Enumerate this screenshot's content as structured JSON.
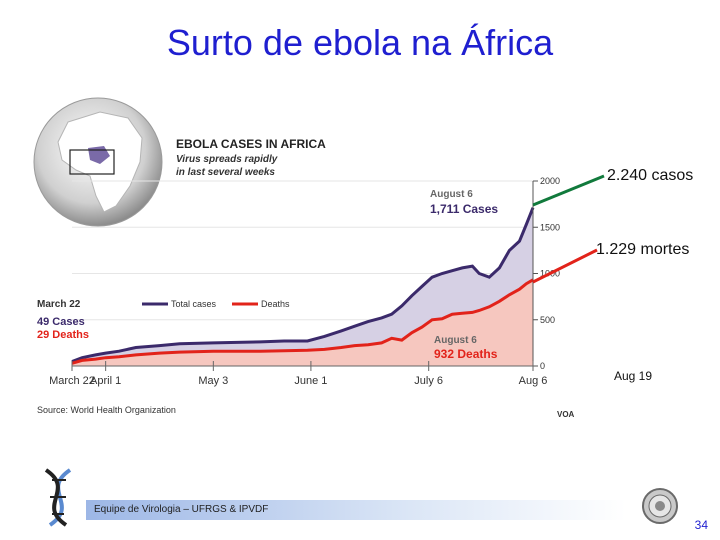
{
  "slide": {
    "title": "Surto de ebola na África",
    "page_number": "34",
    "footer": "Equipe de Virologia – UFRGS & IPVDF"
  },
  "graphic": {
    "heading": "EBOLA CASES IN AFRICA",
    "subheading_line1": "Virus spreads rapidly",
    "subheading_line2": "in last several weeks",
    "source": "Source: World Health Organization",
    "logo": "VOA",
    "start_label_date": "March 22",
    "start_label_cases": "49 Cases",
    "start_label_deaths": "29 Deaths",
    "cases_annotation_date": "August 6",
    "cases_annotation_value": "1,711 Cases",
    "deaths_annotation_date": "August 6",
    "deaths_annotation_value": "932 Deaths"
  },
  "annotations": {
    "cases_callout": "2.240 casos",
    "deaths_callout": "1.229 mortes",
    "date_callout": "Aug 19"
  },
  "colors": {
    "title": "#1f1fd0",
    "cases_line": "#3b2a6b",
    "deaths_line": "#e2231a",
    "cases_fill": "#d6d0e4",
    "deaths_fill": "#f6c7bf",
    "cases_callout_line": "#117a3c",
    "deaths_callout_line": "#e2231a"
  },
  "chart_data": {
    "type": "area",
    "title": "EBOLA CASES IN AFRICA",
    "x_tick_labels": [
      "March 22",
      "April 1",
      "May 3",
      "June 1",
      "July 6",
      "Aug 6"
    ],
    "y_ticks": [
      0,
      500,
      1000,
      1500,
      2000
    ],
    "ylim": [
      0,
      2000
    ],
    "legend": [
      "Total cases",
      "Deaths"
    ],
    "legend_position": "top-left",
    "series": [
      {
        "name": "Total cases",
        "x": [
          "Mar 22",
          "Mar 25",
          "Mar 29",
          "Apr 1",
          "Apr 5",
          "Apr 10",
          "Apr 17",
          "Apr 23",
          "May 3",
          "May 10",
          "May 17",
          "May 24",
          "May 31",
          "Jun 5",
          "Jun 10",
          "Jun 14",
          "Jun 18",
          "Jun 22",
          "Jun 25",
          "Jun 28",
          "Jul 1",
          "Jul 4",
          "Jul 7",
          "Jul 10",
          "Jul 13",
          "Jul 16",
          "Jul 19",
          "Jul 21",
          "Jul 24",
          "Jul 27",
          "Jul 30",
          "Aug 2",
          "Aug 4",
          "Aug 6"
        ],
        "values": [
          49,
          90,
          120,
          140,
          160,
          200,
          220,
          240,
          250,
          255,
          260,
          270,
          270,
          320,
          380,
          430,
          480,
          520,
          560,
          650,
          760,
          860,
          960,
          1000,
          1030,
          1060,
          1080,
          1000,
          960,
          1060,
          1250,
          1350,
          1530,
          1711
        ]
      },
      {
        "name": "Deaths",
        "x": [
          "Mar 22",
          "Mar 25",
          "Mar 29",
          "Apr 1",
          "Apr 5",
          "Apr 10",
          "Apr 17",
          "Apr 23",
          "May 3",
          "May 10",
          "May 17",
          "May 24",
          "May 31",
          "Jun 5",
          "Jun 10",
          "Jun 14",
          "Jun 18",
          "Jun 22",
          "Jun 25",
          "Jun 28",
          "Jul 1",
          "Jul 4",
          "Jul 7",
          "Jul 10",
          "Jul 13",
          "Jul 16",
          "Jul 19",
          "Jul 21",
          "Jul 24",
          "Jul 27",
          "Jul 30",
          "Aug 2",
          "Aug 4",
          "Aug 6"
        ],
        "values": [
          29,
          60,
          75,
          90,
          100,
          120,
          140,
          150,
          160,
          160,
          160,
          165,
          170,
          180,
          200,
          220,
          230,
          250,
          300,
          280,
          360,
          420,
          500,
          510,
          560,
          570,
          580,
          600,
          640,
          700,
          770,
          830,
          890,
          932
        ]
      }
    ],
    "callouts": [
      {
        "label": "2.240 casos",
        "value": 2240,
        "series": "Total cases"
      },
      {
        "label": "1.229 mortes",
        "value": 1229,
        "series": "Deaths"
      },
      {
        "label": "Aug 19",
        "axis": "x"
      }
    ]
  }
}
